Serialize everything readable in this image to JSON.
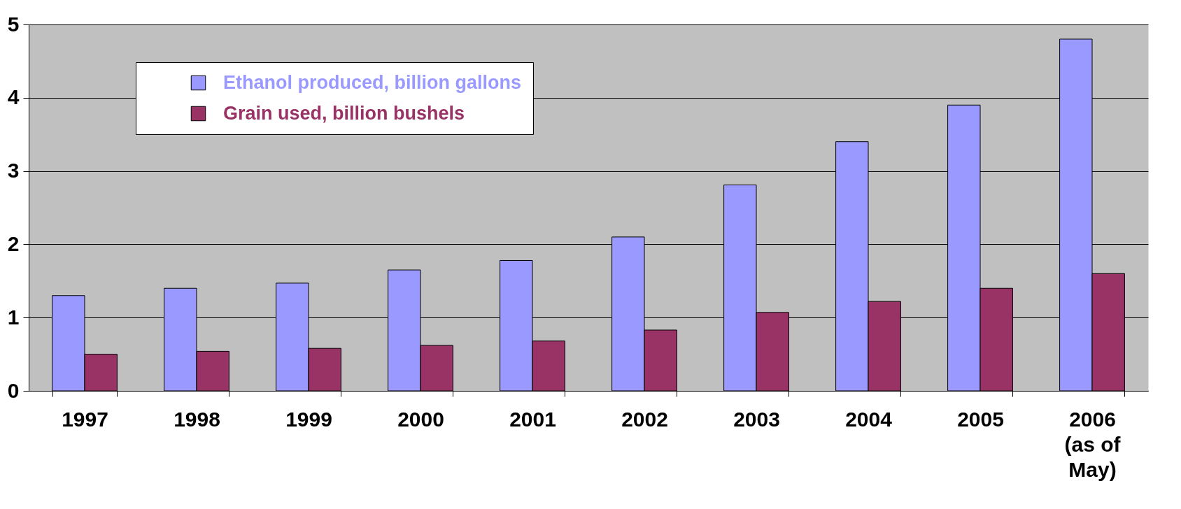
{
  "chart_data": {
    "type": "bar",
    "categories": [
      "1997",
      "1998",
      "1999",
      "2000",
      "2001",
      "2002",
      "2003",
      "2004",
      "2005",
      "2006\n(as of\nMay)"
    ],
    "series": [
      {
        "name": "Ethanol produced, billion gallons",
        "color": "#9999ff",
        "values": [
          1.3,
          1.4,
          1.47,
          1.65,
          1.78,
          2.1,
          2.81,
          3.4,
          3.9,
          4.8
        ]
      },
      {
        "name": "Grain used, billion bushels",
        "color": "#993366",
        "values": [
          0.5,
          0.54,
          0.58,
          0.62,
          0.68,
          0.83,
          1.07,
          1.22,
          1.4,
          1.6
        ]
      }
    ],
    "ylim": [
      0,
      5
    ],
    "yticks": [
      0,
      1,
      2,
      3,
      4,
      5
    ],
    "grid": "y",
    "legend": "top left"
  }
}
